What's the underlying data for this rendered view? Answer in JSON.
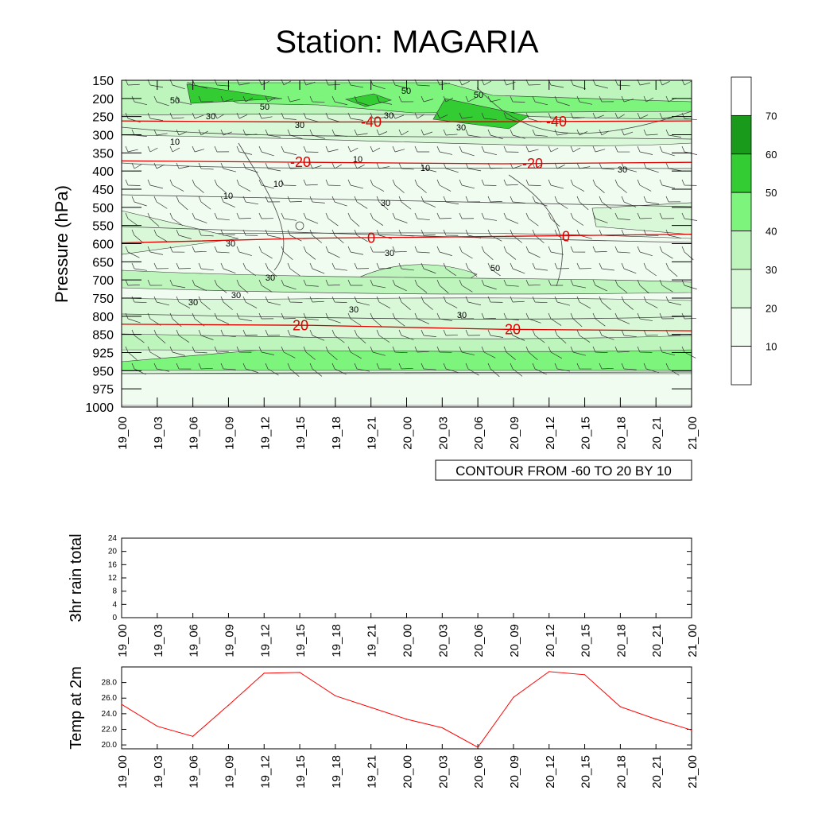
{
  "title": "Station: MAGARIA",
  "chart_data": [
    {
      "type": "heatmap",
      "ylabel": "Pressure (hPa)",
      "pressure_levels": [
        150,
        200,
        250,
        300,
        350,
        400,
        450,
        500,
        550,
        600,
        650,
        700,
        750,
        800,
        850,
        925,
        950,
        975,
        1000
      ],
      "time_labels": [
        "19_00",
        "19_03",
        "19_06",
        "19_09",
        "19_12",
        "19_15",
        "19_18",
        "19_21",
        "20_00",
        "20_03",
        "20_06",
        "20_09",
        "20_12",
        "20_15",
        "20_18",
        "20_21",
        "21_00"
      ],
      "colorbar": {
        "levels": [
          10,
          20,
          30,
          40,
          50,
          60,
          70
        ],
        "colors": [
          "#ffffff",
          "#f0fcf0",
          "#d8f8d8",
          "#bdf5bd",
          "#7df57d",
          "#33cc33",
          "#1a9a1a",
          "#ffffff"
        ],
        "tick_labels": [
          "10",
          "20",
          "30",
          "40",
          "50",
          "60",
          "70"
        ]
      },
      "wind_speed_bands": [
        {
          "level": 200,
          "speed": 50
        },
        {
          "level": 250,
          "speed": 30
        },
        {
          "level": 400,
          "speed": 10
        },
        {
          "level": 700,
          "speed": 40
        },
        {
          "level": 950,
          "speed": 50
        }
      ],
      "temperature_isotherms": [
        {
          "label": "-40",
          "levels_hPa": [
            262,
            265,
            264,
            262
          ]
        },
        {
          "label": "-20",
          "levels_hPa": [
            372,
            376,
            380,
            376
          ]
        },
        {
          "label": "0",
          "levels_hPa": [
            598,
            585,
            580,
            574
          ]
        },
        {
          "label": "20",
          "levels_hPa": [
            822,
            825,
            836,
            840
          ]
        }
      ],
      "contour_labels": [
        "50",
        "50",
        "50",
        "50",
        "30",
        "30",
        "30",
        "30",
        "10",
        "10",
        "10",
        "10",
        "10",
        "30",
        "30",
        "30",
        "30",
        "30",
        "30",
        "30",
        "30",
        "30",
        "50"
      ],
      "contour_note": "CONTOUR FROM -60 TO 20 BY 10"
    },
    {
      "type": "line",
      "ylabel": "3hr rain total",
      "ylim": [
        0,
        24
      ],
      "yticks": [
        "0",
        "4",
        "8",
        "12",
        "16",
        "20",
        "24"
      ],
      "x": [
        "19_00",
        "19_03",
        "19_06",
        "19_09",
        "19_12",
        "19_15",
        "19_18",
        "19_21",
        "20_00",
        "20_03",
        "20_06",
        "20_09",
        "20_12",
        "20_15",
        "20_18",
        "20_21",
        "21_00"
      ],
      "values": [
        0,
        0,
        0,
        0,
        0,
        0,
        0,
        0,
        0,
        0,
        0,
        0,
        0,
        0,
        0,
        0,
        0
      ]
    },
    {
      "type": "line",
      "ylabel": "Temp at 2m",
      "ylim": [
        19.5,
        30.0
      ],
      "yticks": [
        "20.0",
        "22.0",
        "24.0",
        "26.0",
        "28.0"
      ],
      "x": [
        "19_00",
        "19_03",
        "19_06",
        "19_09",
        "19_12",
        "19_15",
        "19_18",
        "19_21",
        "20_00",
        "20_03",
        "20_06",
        "20_09",
        "20_12",
        "20_15",
        "20_18",
        "20_21",
        "21_00"
      ],
      "values": [
        25.2,
        22.4,
        21.1,
        25.1,
        29.2,
        29.3,
        26.3,
        24.8,
        23.3,
        22.2,
        19.7,
        26.1,
        29.4,
        29.0,
        24.9,
        23.3,
        21.9
      ],
      "color": "#ff0000"
    }
  ]
}
